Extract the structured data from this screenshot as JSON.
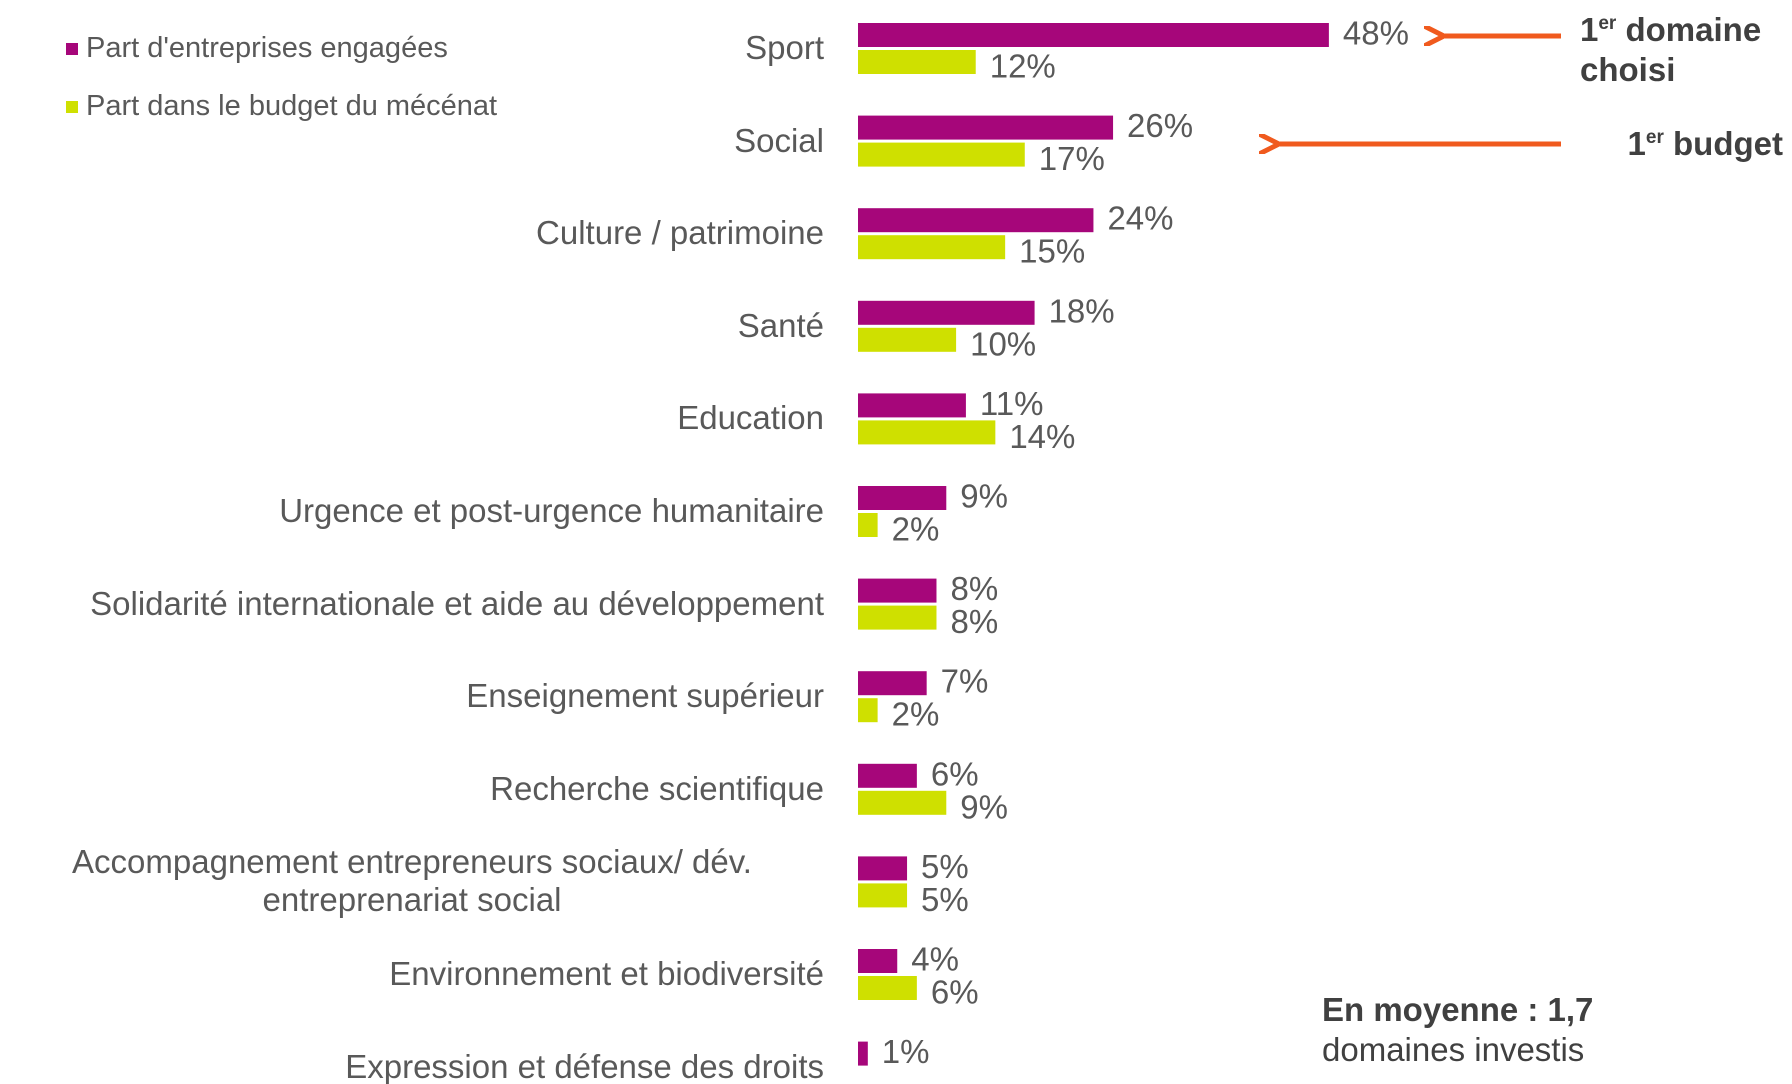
{
  "chart_data": {
    "type": "bar",
    "orientation": "horizontal",
    "categories": [
      "Sport",
      "Social",
      "Culture / patrimoine",
      "Santé",
      "Education",
      "Urgence et post-urgence humanitaire",
      "Solidarité internationale et aide au développement",
      "Enseignement supérieur",
      "Recherche scientifique",
      "Accompagnement entrepreneurs sociaux/ dév. entreprenariat social",
      "Environnement et biodiversité",
      "Expression et défense des droits"
    ],
    "series": [
      {
        "name": "Part d'entreprises engagées",
        "color": "#a6067a",
        "values": [
          48,
          26,
          24,
          18,
          11,
          9,
          8,
          7,
          6,
          5,
          4,
          1
        ],
        "value_labels": [
          "48%",
          "26%",
          "24%",
          "18%",
          "11%",
          "9%",
          "8%",
          "7%",
          "6%",
          "5%",
          "4%",
          "1%"
        ]
      },
      {
        "name": "Part dans le budget du mécénat",
        "color": "#cfe000",
        "values": [
          12,
          17,
          15,
          10,
          14,
          2,
          8,
          2,
          9,
          5,
          6,
          null
        ],
        "value_labels": [
          "12%",
          "17%",
          "15%",
          "10%",
          "14%",
          "2%",
          "8%",
          "2%",
          "9%",
          "5%",
          "6%",
          null
        ]
      }
    ],
    "xlim": [
      0,
      100
    ],
    "legend": "top-left",
    "annotations": [
      {
        "sup_base": "1",
        "sup": "er",
        "text": " domaine",
        "text2": "choisi"
      },
      {
        "sup_base": "1",
        "sup": "er",
        "text": " budget"
      }
    ],
    "note": {
      "bold": "En moyenne : 1,7",
      "text": "domaines investis"
    }
  }
}
